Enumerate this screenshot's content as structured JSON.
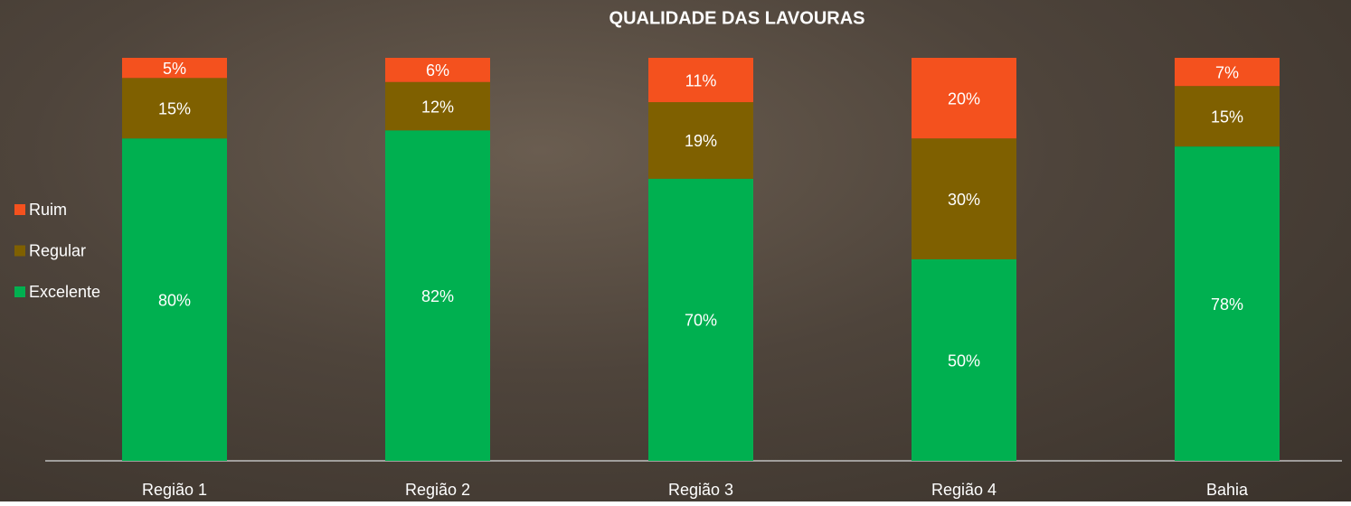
{
  "chart_data": {
    "type": "stacked_bar",
    "title": "QUALIDADE DAS LAVOURAS",
    "categories": [
      "Região 1",
      "Região 2",
      "Região 3",
      "Região 4",
      "Bahia"
    ],
    "series": [
      {
        "name": "Excelente",
        "color": "#00b050",
        "values": [
          80,
          82,
          70,
          50,
          78
        ],
        "value_labels": [
          "80%",
          "82%",
          "70%",
          "50%",
          "78%"
        ]
      },
      {
        "name": "Regular",
        "color": "#7f6000",
        "values": [
          15,
          12,
          19,
          30,
          15
        ],
        "value_labels": [
          "15%",
          "12%",
          "19%",
          "30%",
          "15%"
        ]
      },
      {
        "name": "Ruim",
        "color": "#f4511e",
        "values": [
          5,
          6,
          11,
          20,
          7
        ],
        "value_labels": [
          "5%",
          "6%",
          "11%",
          "20%",
          "7%"
        ]
      }
    ],
    "ylim": [
      0,
      100
    ],
    "legend": "left"
  }
}
